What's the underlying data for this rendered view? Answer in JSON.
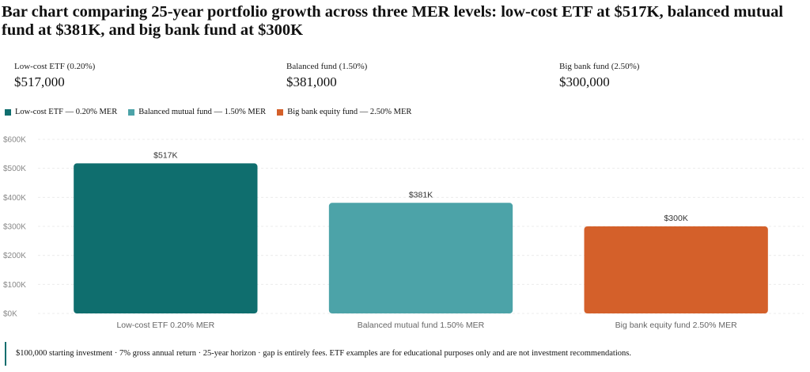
{
  "title": "Bar chart comparing 25-year portfolio growth across three MER levels: low-cost ETF at $517K, balanced mutual fund at $381K, and big bank fund at $300K",
  "stats": [
    {
      "label": "Low-cost ETF (0.20%)",
      "value": "$517,000"
    },
    {
      "label": "Balanced fund (1.50%)",
      "value": "$381,000"
    },
    {
      "label": "Big bank fund (2.50%)",
      "value": "$300,000"
    }
  ],
  "legend": [
    {
      "label": "Low-cost ETF — 0.20% MER",
      "color": "#0f6e6e"
    },
    {
      "label": "Balanced mutual fund — 1.50% MER",
      "color": "#4ca3a8"
    },
    {
      "label": "Big bank equity fund — 2.50% MER",
      "color": "#d4602a"
    }
  ],
  "footnote": "$100,000 starting investment · 7% gross annual return · 25-year horizon · gap is entirely fees. ETF examples are for educational purposes only and are not investment recommendations.",
  "chart_data": {
    "type": "bar",
    "categories": [
      "Low-cost ETF 0.20% MER",
      "Balanced mutual fund 1.50% MER",
      "Big bank equity fund 2.50% MER"
    ],
    "values": [
      517,
      381,
      300
    ],
    "value_labels": [
      "$517K",
      "$381K",
      "$300K"
    ],
    "colors": [
      "#0f6e6e",
      "#4ca3a8",
      "#d4602a"
    ],
    "ylim": [
      0,
      600
    ],
    "yticks": [
      0,
      100,
      200,
      300,
      400,
      500,
      600
    ],
    "ytick_labels": [
      "$0K",
      "$100K",
      "$200K",
      "$300K",
      "$400K",
      "$500K",
      "$600K"
    ],
    "xlabel": "",
    "ylabel": "",
    "grid": true,
    "legend_position": "top-left"
  }
}
